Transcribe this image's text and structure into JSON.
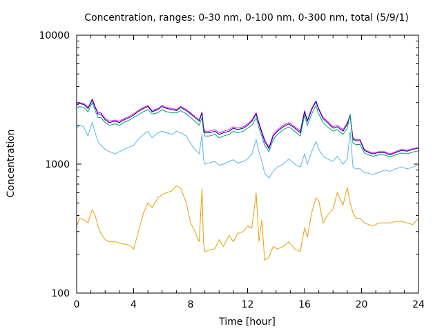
{
  "chart_data": {
    "type": "line",
    "title": "Concentration, ranges: 0-30 nm, 0-100 nm, 0-300 nm, total (5/9/1)",
    "xlabel": "Time [hour]",
    "ylabel": "Concentration",
    "xlim": [
      0,
      24
    ],
    "ylim": [
      100,
      10000
    ],
    "yscale": "log",
    "grid": false,
    "legend": "none",
    "x_ticks": [
      0,
      4,
      8,
      12,
      16,
      20,
      24
    ],
    "x_tick_labels": [
      "0",
      "4",
      "8",
      "12",
      "16",
      "20",
      "24"
    ],
    "y_ticks": [
      100,
      1000,
      10000
    ],
    "y_tick_labels": [
      "100",
      "1000",
      "10000"
    ],
    "series": [
      {
        "color": "#ff00ff",
        "x": [
          0,
          0.2,
          0.5,
          0.8,
          1,
          1.1,
          1.3,
          1.5,
          1.7,
          2,
          2.3,
          2.7,
          3,
          3.3,
          3.7,
          4,
          4.3,
          4.7,
          5,
          5.3,
          5.7,
          6,
          6.3,
          6.7,
          7,
          7.3,
          7.7,
          8,
          8.3,
          8.6,
          8.8,
          8.9,
          9,
          9.3,
          9.7,
          10,
          10.3,
          10.7,
          11,
          11.3,
          11.7,
          12,
          12.3,
          12.6,
          12.8,
          13,
          13.2,
          13.5,
          13.8,
          14.1,
          14.5,
          14.9,
          15.3,
          15.7,
          16,
          16.2,
          16.5,
          16.8,
          17,
          17.3,
          17.6,
          18,
          18.3,
          18.7,
          19,
          19.2,
          19.4,
          19.6,
          19.9,
          20.2,
          20.5,
          20.8,
          21.2,
          21.6,
          22,
          22.4,
          22.8,
          23.2,
          23.6,
          24
        ],
        "y": [
          2900,
          3000,
          2950,
          2750,
          3050,
          3200,
          2800,
          2500,
          2500,
          2250,
          2150,
          2200,
          2150,
          2250,
          2350,
          2450,
          2600,
          2750,
          2850,
          2600,
          2700,
          2850,
          2750,
          2700,
          2650,
          2800,
          2650,
          2500,
          2350,
          2200,
          2550,
          1950,
          1800,
          1800,
          1850,
          1750,
          1800,
          1850,
          1950,
          1900,
          1950,
          2050,
          2200,
          2500,
          2100,
          1800,
          1550,
          1350,
          1700,
          1850,
          2000,
          2100,
          1950,
          1800,
          2600,
          2200,
          2700,
          3100,
          2700,
          2300,
          2150,
          1950,
          2000,
          1850,
          2100,
          2400,
          1600,
          1550,
          1550,
          1300,
          1250,
          1220,
          1250,
          1250,
          1200,
          1250,
          1300,
          1280,
          1320,
          1350
        ]
      },
      {
        "color": "#00008b",
        "x": [
          0,
          0.2,
          0.5,
          0.8,
          1,
          1.1,
          1.3,
          1.5,
          1.7,
          2,
          2.3,
          2.7,
          3,
          3.3,
          3.7,
          4,
          4.3,
          4.7,
          5,
          5.3,
          5.7,
          6,
          6.3,
          6.7,
          7,
          7.3,
          7.7,
          8,
          8.3,
          8.6,
          8.8,
          8.9,
          9,
          9.3,
          9.7,
          10,
          10.3,
          10.7,
          11,
          11.3,
          11.7,
          12,
          12.3,
          12.6,
          12.8,
          13,
          13.2,
          13.5,
          13.8,
          14.1,
          14.5,
          14.9,
          15.3,
          15.7,
          16,
          16.2,
          16.5,
          16.8,
          17,
          17.3,
          17.6,
          18,
          18.3,
          18.7,
          19,
          19.2,
          19.4,
          19.6,
          19.9,
          20.2,
          20.5,
          20.8,
          21.2,
          21.6,
          22,
          22.4,
          22.8,
          23.2,
          23.6,
          24
        ],
        "y": [
          2850,
          2950,
          2900,
          2700,
          3000,
          3150,
          2750,
          2450,
          2450,
          2200,
          2100,
          2150,
          2100,
          2200,
          2300,
          2400,
          2550,
          2700,
          2800,
          2550,
          2650,
          2800,
          2700,
          2650,
          2600,
          2750,
          2600,
          2450,
          2300,
          2150,
          2500,
          1900,
          1750,
          1750,
          1800,
          1700,
          1750,
          1800,
          1900,
          1850,
          1900,
          2000,
          2150,
          2450,
          2050,
          1750,
          1500,
          1320,
          1650,
          1800,
          1950,
          2050,
          1900,
          1750,
          2550,
          2150,
          2650,
          3050,
          2650,
          2250,
          2100,
          1900,
          1950,
          1800,
          2050,
          2350,
          1560,
          1520,
          1520,
          1280,
          1230,
          1200,
          1230,
          1230,
          1180,
          1230,
          1280,
          1260,
          1300,
          1330
        ]
      },
      {
        "color": "#009e73",
        "x": [
          0,
          0.2,
          0.5,
          0.8,
          1,
          1.1,
          1.3,
          1.5,
          1.7,
          2,
          2.3,
          2.7,
          3,
          3.3,
          3.7,
          4,
          4.3,
          4.7,
          5,
          5.3,
          5.7,
          6,
          6.3,
          6.7,
          7,
          7.3,
          7.7,
          8,
          8.3,
          8.6,
          8.8,
          8.9,
          9,
          9.3,
          9.7,
          10,
          10.3,
          10.7,
          11,
          11.3,
          11.7,
          12,
          12.3,
          12.6,
          12.8,
          13,
          13.2,
          13.5,
          13.8,
          14.1,
          14.5,
          14.9,
          15.3,
          15.7,
          16,
          16.2,
          16.5,
          16.8,
          17,
          17.3,
          17.6,
          18,
          18.3,
          18.7,
          19,
          19.2,
          19.4,
          19.6,
          19.9,
          20.2,
          20.5,
          20.8,
          21.2,
          21.6,
          22,
          22.4,
          22.8,
          23.2,
          23.6,
          24
        ],
        "y": [
          2700,
          2800,
          2750,
          2550,
          2850,
          3000,
          2600,
          2300,
          2300,
          2100,
          2000,
          2050,
          2000,
          2100,
          2200,
          2300,
          2400,
          2550,
          2650,
          2450,
          2500,
          2650,
          2550,
          2500,
          2500,
          2600,
          2450,
          2300,
          2150,
          2000,
          2300,
          1800,
          1650,
          1650,
          1700,
          1600,
          1650,
          1700,
          1800,
          1750,
          1800,
          1900,
          2000,
          2300,
          1900,
          1650,
          1400,
          1250,
          1550,
          1700,
          1850,
          1950,
          1800,
          1650,
          2400,
          2000,
          2450,
          2850,
          2450,
          2100,
          1950,
          1800,
          1850,
          1700,
          1900,
          2450,
          1450,
          1420,
          1420,
          1220,
          1180,
          1150,
          1180,
          1180,
          1140,
          1180,
          1220,
          1200,
          1240,
          1270
        ]
      },
      {
        "color": "#56b4e9",
        "x": [
          0,
          0.2,
          0.5,
          0.8,
          1,
          1.1,
          1.3,
          1.5,
          1.7,
          2,
          2.3,
          2.7,
          3,
          3.3,
          3.7,
          4,
          4.3,
          4.7,
          5,
          5.3,
          5.7,
          6,
          6.3,
          6.7,
          7,
          7.3,
          7.7,
          8,
          8.3,
          8.6,
          8.8,
          8.9,
          9,
          9.3,
          9.7,
          10,
          10.3,
          10.7,
          11,
          11.3,
          11.7,
          12,
          12.3,
          12.6,
          12.8,
          13,
          13.2,
          13.5,
          13.8,
          14.1,
          14.5,
          14.9,
          15.3,
          15.7,
          16,
          16.2,
          16.5,
          16.8,
          17,
          17.3,
          17.6,
          18,
          18.3,
          18.7,
          19,
          19.2,
          19.4,
          19.6,
          19.9,
          20.2,
          20.5,
          20.8,
          21.2,
          21.6,
          22,
          22.4,
          22.8,
          23.2,
          23.6,
          24
        ],
        "y": [
          1900,
          2000,
          1950,
          1650,
          1950,
          2100,
          1750,
          1500,
          1400,
          1300,
          1250,
          1200,
          1250,
          1300,
          1350,
          1400,
          1550,
          1700,
          1800,
          1600,
          1750,
          1800,
          1750,
          1700,
          1800,
          1750,
          1650,
          1450,
          1300,
          1200,
          1700,
          1100,
          1000,
          1020,
          1050,
          980,
          1000,
          1050,
          1080,
          1020,
          1050,
          1100,
          1200,
          1550,
          1250,
          1050,
          850,
          780,
          880,
          950,
          1000,
          1100,
          1000,
          950,
          1200,
          1000,
          1250,
          1500,
          1300,
          1150,
          1100,
          1050,
          1150,
          1000,
          1100,
          1800,
          950,
          920,
          920,
          860,
          850,
          830,
          860,
          900,
          880,
          920,
          950,
          920,
          950,
          980
        ]
      },
      {
        "color": "#e69f00",
        "x": [
          0,
          0.2,
          0.5,
          0.8,
          1,
          1.1,
          1.3,
          1.5,
          1.7,
          2,
          2.3,
          2.7,
          3,
          3.3,
          3.7,
          4,
          4.3,
          4.7,
          5,
          5.3,
          5.7,
          6,
          6.3,
          6.7,
          7,
          7.3,
          7.7,
          8,
          8.3,
          8.6,
          8.8,
          8.9,
          9,
          9.3,
          9.7,
          10,
          10.3,
          10.7,
          11,
          11.3,
          11.7,
          12,
          12.3,
          12.6,
          12.8,
          13,
          13.2,
          13.5,
          13.8,
          14.1,
          14.5,
          14.9,
          15.3,
          15.7,
          16,
          16.2,
          16.5,
          16.8,
          17,
          17.3,
          17.6,
          18,
          18.3,
          18.7,
          19,
          19.2,
          19.4,
          19.6,
          19.9,
          20.2,
          20.5,
          20.8,
          21.2,
          21.6,
          22,
          22.4,
          22.8,
          23.2,
          23.6,
          24
        ],
        "y": [
          330,
          380,
          370,
          350,
          420,
          440,
          400,
          330,
          290,
          260,
          250,
          250,
          245,
          240,
          235,
          220,
          290,
          420,
          500,
          460,
          550,
          580,
          600,
          620,
          680,
          650,
          500,
          350,
          300,
          250,
          650,
          250,
          210,
          215,
          220,
          260,
          230,
          280,
          250,
          290,
          300,
          330,
          320,
          600,
          250,
          370,
          180,
          190,
          230,
          220,
          230,
          250,
          220,
          210,
          320,
          270,
          420,
          550,
          520,
          350,
          400,
          450,
          600,
          480,
          660,
          500,
          420,
          380,
          380,
          350,
          340,
          330,
          350,
          350,
          350,
          360,
          360,
          350,
          340,
          380
        ]
      }
    ]
  }
}
